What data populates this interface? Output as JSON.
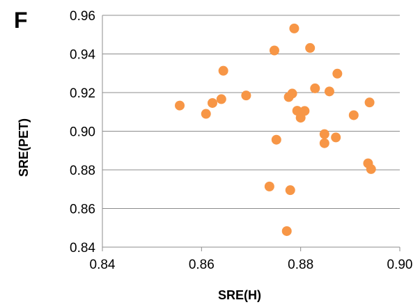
{
  "panel_label": "F",
  "chart_data": {
    "type": "scatter",
    "xlabel": "SRE(H)",
    "ylabel": "SRE(PET)",
    "xlim": [
      0.84,
      0.9
    ],
    "ylim": [
      0.84,
      0.96
    ],
    "x_ticks": [
      0.84,
      0.86,
      0.88,
      0.9
    ],
    "y_ticks": [
      0.84,
      0.86,
      0.88,
      0.9,
      0.92,
      0.94,
      0.96
    ],
    "x_tick_labels": [
      "0.84",
      "0.86",
      "0.88",
      "0.90"
    ],
    "y_tick_labels": [
      "0.84",
      "0.86",
      "0.88",
      "0.90",
      "0.92",
      "0.94",
      "0.96"
    ],
    "grid": "horizontal",
    "marker_color": "#f79646",
    "points": [
      {
        "x": 0.8556,
        "y": 0.9133
      },
      {
        "x": 0.8609,
        "y": 0.909
      },
      {
        "x": 0.8622,
        "y": 0.9146
      },
      {
        "x": 0.864,
        "y": 0.9166
      },
      {
        "x": 0.8644,
        "y": 0.9313
      },
      {
        "x": 0.869,
        "y": 0.9185
      },
      {
        "x": 0.8737,
        "y": 0.8714
      },
      {
        "x": 0.8747,
        "y": 0.9418
      },
      {
        "x": 0.8751,
        "y": 0.8956
      },
      {
        "x": 0.8772,
        "y": 0.8483
      },
      {
        "x": 0.8776,
        "y": 0.9177
      },
      {
        "x": 0.8779,
        "y": 0.8695
      },
      {
        "x": 0.8783,
        "y": 0.9195
      },
      {
        "x": 0.8787,
        "y": 0.9532
      },
      {
        "x": 0.8793,
        "y": 0.9106
      },
      {
        "x": 0.88,
        "y": 0.907
      },
      {
        "x": 0.8808,
        "y": 0.9105
      },
      {
        "x": 0.8819,
        "y": 0.9431
      },
      {
        "x": 0.8829,
        "y": 0.9222
      },
      {
        "x": 0.8848,
        "y": 0.8985
      },
      {
        "x": 0.8848,
        "y": 0.8938
      },
      {
        "x": 0.8858,
        "y": 0.9206
      },
      {
        "x": 0.8871,
        "y": 0.8968
      },
      {
        "x": 0.8874,
        "y": 0.9298
      },
      {
        "x": 0.8907,
        "y": 0.9083
      },
      {
        "x": 0.8936,
        "y": 0.8834
      },
      {
        "x": 0.8939,
        "y": 0.9149
      },
      {
        "x": 0.8942,
        "y": 0.8804
      }
    ]
  }
}
